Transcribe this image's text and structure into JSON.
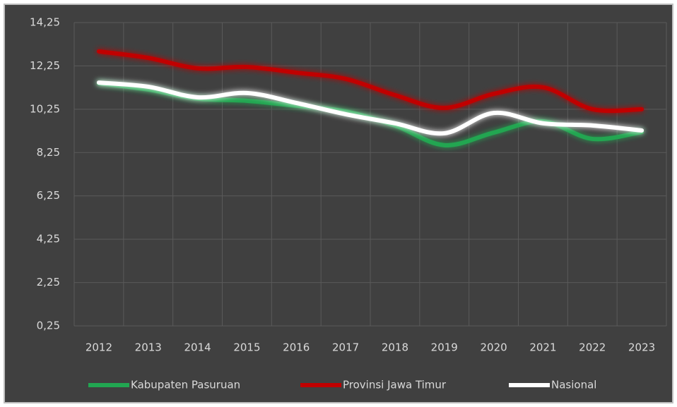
{
  "chart_data": {
    "type": "line",
    "categories": [
      "2012",
      "2013",
      "2014",
      "2015",
      "2016",
      "2017",
      "2018",
      "2019",
      "2020",
      "2021",
      "2022",
      "2023"
    ],
    "series": [
      {
        "name": "Kabupaten Pasuruan",
        "color": "#21a651",
        "values": [
          11.45,
          11.16,
          10.74,
          10.64,
          10.41,
          10.15,
          9.5,
          8.59,
          9.17,
          9.69,
          8.88,
          9.2
        ]
      },
      {
        "name": "Provinsi Jawa Timur",
        "color": "#c00000",
        "values": [
          12.92,
          12.62,
          12.14,
          12.2,
          11.94,
          11.65,
          10.9,
          10.31,
          10.96,
          11.26,
          10.25,
          10.25
        ]
      },
      {
        "name": "Nasional",
        "color": "#ffffff",
        "values": [
          11.48,
          11.29,
          10.8,
          11.0,
          10.54,
          10.02,
          9.6,
          9.14,
          10.08,
          9.6,
          9.5,
          9.27
        ]
      }
    ],
    "ylim": [
      0.25,
      14.25
    ],
    "yticks": [
      {
        "value": 0.25,
        "label": "0,25"
      },
      {
        "value": 2.25,
        "label": "2,25"
      },
      {
        "value": 4.25,
        "label": "4,25"
      },
      {
        "value": 6.25,
        "label": "6,25"
      },
      {
        "value": 8.25,
        "label": "8,25"
      },
      {
        "value": 10.25,
        "label": "10,25"
      },
      {
        "value": 12.25,
        "label": "12,25"
      },
      {
        "value": 14.25,
        "label": "14,25"
      }
    ],
    "grid": true,
    "legend": "bottom"
  }
}
